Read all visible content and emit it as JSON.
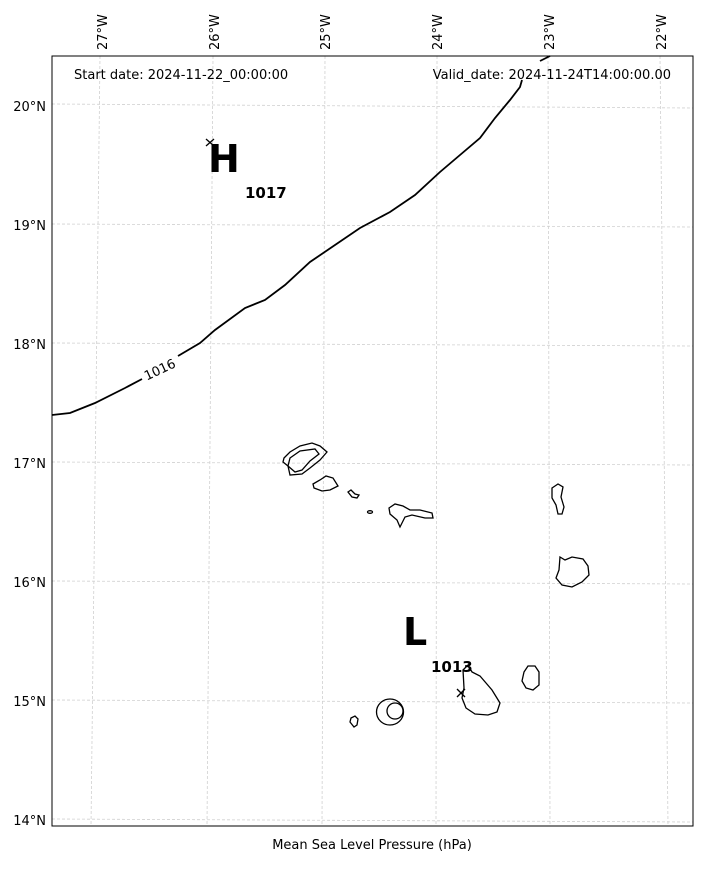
{
  "header": {
    "start_date": "Start date: 2024-11-22_00:00:00",
    "valid_date": "Valid_date: 2024-11-24T14:00:00.00"
  },
  "axes": {
    "lon_ticks": [
      "27°W",
      "26°W",
      "25°W",
      "24°W",
      "23°W",
      "22°W"
    ],
    "lat_ticks": [
      "20°N",
      "19°N",
      "18°N",
      "17°N",
      "16°N",
      "15°N",
      "14°N"
    ],
    "xlabel": "Mean Sea Level Pressure (hPa)"
  },
  "systems": {
    "high": {
      "letter": "H",
      "value": "1017"
    },
    "low": {
      "letter": "L",
      "value": "1013"
    }
  },
  "contours": {
    "label_1016": "1016"
  }
}
